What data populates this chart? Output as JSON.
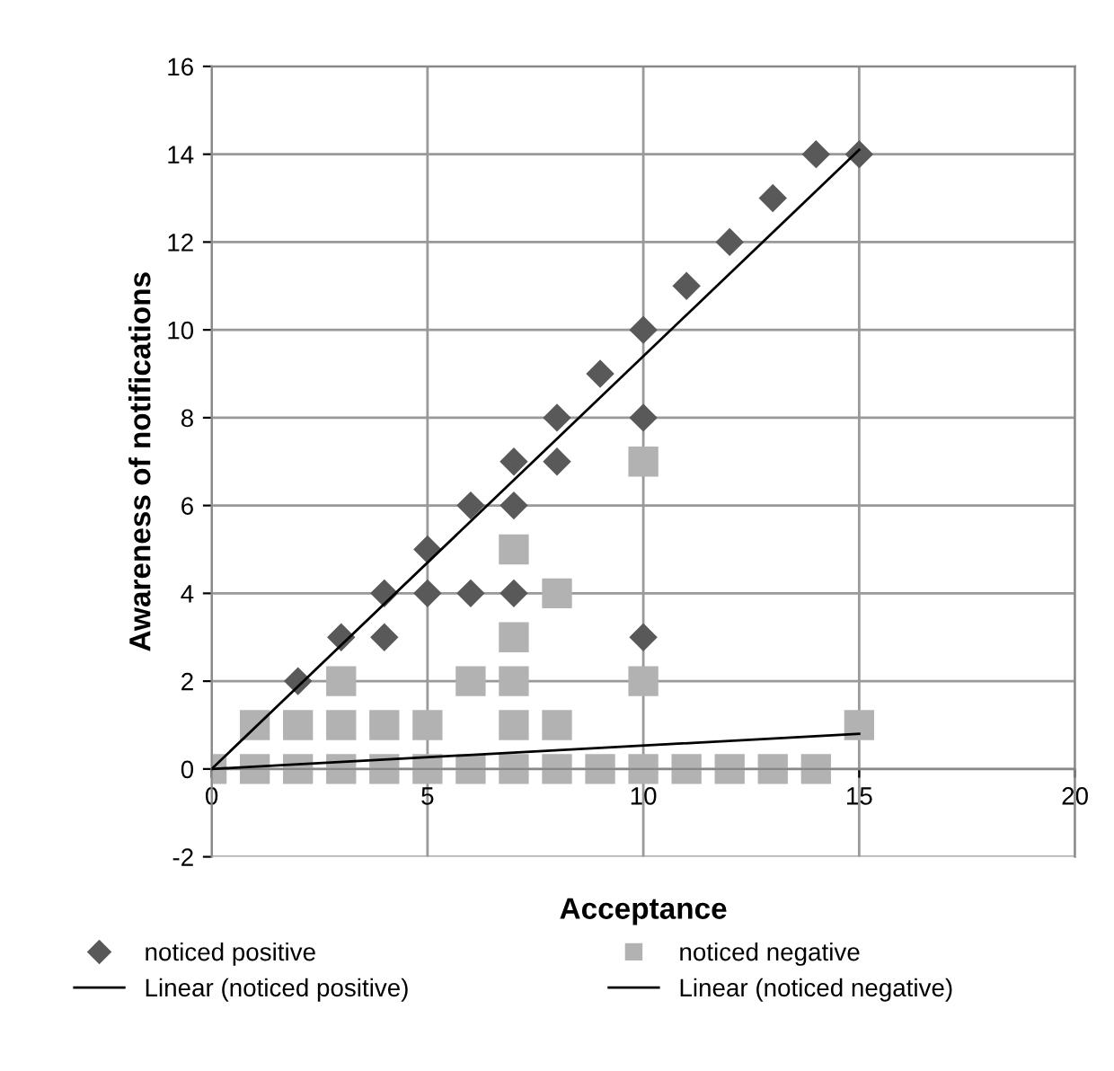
{
  "chart_data": {
    "type": "scatter",
    "xlabel": "Acceptance",
    "ylabel": "Awareness of notifications",
    "xlim": [
      0,
      20
    ],
    "xticks": [
      0,
      5,
      10,
      15,
      20
    ],
    "ylim": [
      -2,
      16
    ],
    "yticks": [
      -2,
      0,
      2,
      4,
      6,
      8,
      10,
      12,
      14,
      16
    ],
    "grid": true,
    "legend": "bottom",
    "series": [
      {
        "name": "noticed positive",
        "marker": "diamond",
        "color": "#595959",
        "x": [
          2,
          3,
          4,
          4,
          5,
          5,
          6,
          6,
          7,
          7,
          7,
          8,
          8,
          9,
          10,
          10,
          10,
          11,
          12,
          13,
          14,
          15
        ],
        "values": [
          2,
          3,
          4,
          3,
          5,
          4,
          6,
          4,
          7,
          6,
          4,
          8,
          7,
          9,
          10,
          8,
          3,
          11,
          12,
          13,
          14,
          14
        ]
      },
      {
        "name": "noticed negative",
        "marker": "square",
        "color": "#b2b2b2",
        "x": [
          0,
          1,
          2,
          3,
          4,
          5,
          6,
          7,
          8,
          9,
          10,
          11,
          12,
          13,
          14,
          1,
          2,
          3,
          4,
          5,
          7,
          8,
          15,
          3,
          6,
          7,
          10,
          7,
          7,
          8,
          10
        ],
        "values": [
          0,
          0,
          0,
          0,
          0,
          0,
          0,
          0,
          0,
          0,
          0,
          0,
          0,
          0,
          0,
          1,
          1,
          1,
          1,
          1,
          1,
          1,
          1,
          2,
          2,
          2,
          2,
          3,
          5,
          4,
          7
        ]
      },
      {
        "name": "Linear (noticed positive)",
        "type": "line",
        "line_style": "solid",
        "color": "#000000",
        "x": [
          0,
          15
        ],
        "values": [
          0,
          14.1
        ]
      },
      {
        "name": "Linear (noticed negative)",
        "type": "line",
        "line_style": "solid",
        "color": "#000000",
        "x": [
          0,
          15
        ],
        "values": [
          0,
          0.8
        ]
      }
    ]
  }
}
